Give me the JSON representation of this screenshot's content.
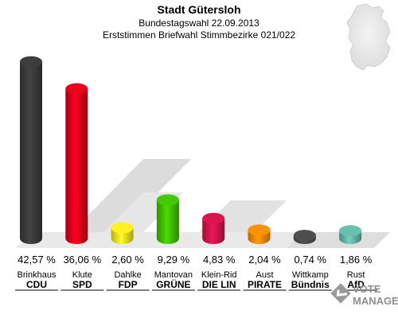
{
  "header": {
    "title": "Stadt Gütersloh",
    "subtitle": "Bundestagswahl 22.09.2013",
    "subtitle2": "Erststimmen Briefwahl Stimmbezirke 021/022"
  },
  "watermark": {
    "line1": "VOTE",
    "line2": "MANAGER"
  },
  "chart_data": {
    "type": "bar",
    "title": "Stadt Gütersloh",
    "subtitle": "Bundestagswahl 22.09.2013 — Erststimmen Briefwahl Stimmbezirke 021/022",
    "unit": "%",
    "ylim": [
      0,
      45
    ],
    "categories": [
      "CDU",
      "SPD",
      "FDP",
      "GRÜNE",
      "DIE LIN",
      "PIRATE",
      "Bündnis",
      "AfD"
    ],
    "candidates": [
      "Brinkhaus",
      "Klute",
      "Dahlke",
      "Mantovan",
      "Klein-Rid",
      "Aust",
      "Wittkamp",
      "Rust"
    ],
    "values": [
      42.57,
      36.06,
      2.6,
      9.29,
      4.83,
      2.04,
      0.74,
      1.86
    ],
    "labels": [
      "42,57 %",
      "36,06 %",
      "2,60 %",
      "9,29 %",
      "4,83 %",
      "2,04 %",
      "0,74 %",
      "1,86 %"
    ],
    "colors": [
      "#3a3a3a",
      "#e0001a",
      "#f5e61e",
      "#40c000",
      "#d0144c",
      "#ff8a00",
      "#4a4a4a",
      "#63b8a6"
    ]
  }
}
